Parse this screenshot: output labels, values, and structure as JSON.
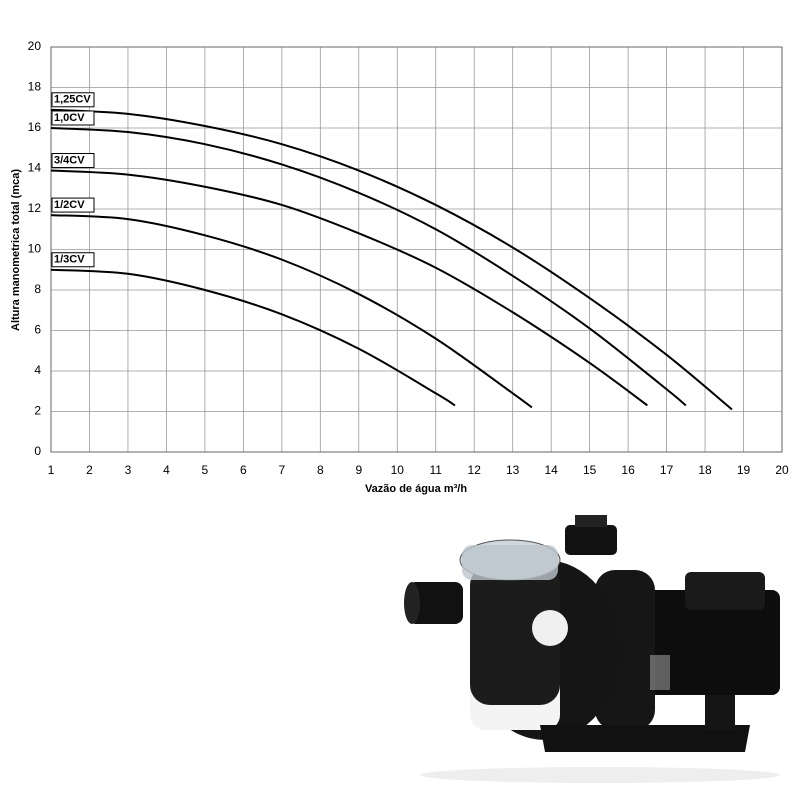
{
  "chart_data": {
    "type": "line",
    "x_label": "Vazão de água m³/h",
    "y_label": "Altura manometrica total (mca)",
    "xlim": [
      1,
      20
    ],
    "xticks": [
      1,
      2,
      3,
      4,
      5,
      6,
      7,
      8,
      9,
      10,
      11,
      12,
      13,
      14,
      15,
      16,
      17,
      18,
      19,
      20
    ],
    "ylim": [
      0,
      20
    ],
    "yticks": [
      0,
      2,
      4,
      6,
      8,
      10,
      12,
      14,
      16,
      18,
      20
    ],
    "grid": true,
    "series": [
      {
        "name": "1,25CV",
        "color": "#000000",
        "x": [
          1,
          3,
          5,
          7,
          9,
          11,
          13,
          15,
          17,
          18.7
        ],
        "values": [
          16.9,
          16.7,
          16.1,
          15.2,
          13.9,
          12.2,
          10.1,
          7.6,
          4.8,
          2.1
        ]
      },
      {
        "name": "1,0CV",
        "color": "#000000",
        "x": [
          1,
          3,
          5,
          7,
          9,
          11,
          13,
          15,
          17,
          17.5
        ],
        "values": [
          16.0,
          15.8,
          15.2,
          14.2,
          12.8,
          11.0,
          8.7,
          6.1,
          3.1,
          2.3
        ]
      },
      {
        "name": "3/4CV",
        "color": "#000000",
        "x": [
          1,
          3,
          5,
          7,
          9,
          11,
          13,
          15,
          16.5
        ],
        "values": [
          13.9,
          13.7,
          13.1,
          12.2,
          10.8,
          9.1,
          6.9,
          4.4,
          2.3
        ]
      },
      {
        "name": "1/2CV",
        "color": "#000000",
        "x": [
          1,
          3,
          5,
          7,
          9,
          11,
          13,
          13.5
        ],
        "values": [
          11.7,
          11.5,
          10.7,
          9.5,
          7.8,
          5.6,
          2.9,
          2.2
        ]
      },
      {
        "name": "1/3CV",
        "color": "#000000",
        "x": [
          1,
          3,
          5,
          7,
          9,
          11,
          11.5
        ],
        "values": [
          9.0,
          8.8,
          8.0,
          6.8,
          5.1,
          2.9,
          2.3
        ]
      }
    ]
  }
}
